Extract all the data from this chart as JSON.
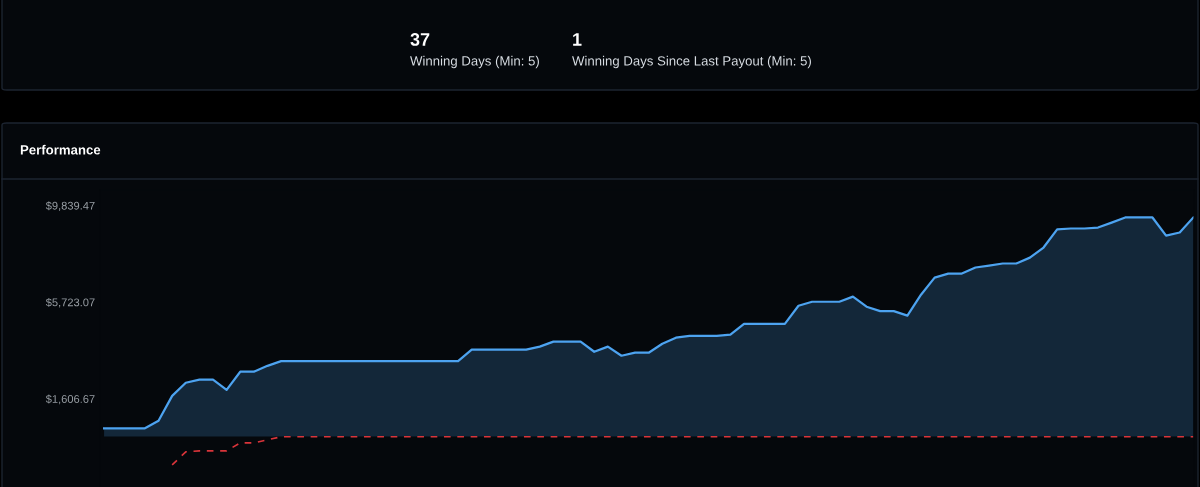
{
  "chart_data": [
    {
      "type": "other",
      "annotations": [
        "37",
        "Winning Days (Min: 5)",
        "1",
        "Winning Days Since Last Payout (Min: 5)"
      ]
    },
    {
      "type": "area",
      "title": "Performance",
      "categories": [
        null,
        null,
        null,
        null,
        null,
        null,
        null,
        null,
        null,
        null,
        null,
        null,
        null,
        null,
        null,
        null,
        null,
        null,
        null,
        null,
        null,
        null,
        null,
        null,
        null,
        null,
        null,
        null,
        null,
        null,
        null,
        null,
        null,
        null,
        null,
        null,
        null,
        null,
        null,
        null,
        null,
        null,
        null,
        null,
        null,
        null,
        null,
        null,
        null,
        null,
        null,
        null,
        null,
        null,
        null,
        null,
        null,
        null,
        null,
        null,
        null,
        null,
        null,
        null,
        null,
        null,
        null,
        null,
        null,
        null,
        null,
        null,
        null,
        null,
        null,
        null,
        null,
        null,
        null,
        null,
        null
      ],
      "ylim": [
        -2150,
        10500
      ],
      "yticks": [
        {
          "value": 1606.67,
          "label": "$1,606.67"
        },
        {
          "value": 5723.07,
          "label": "$5,723.07"
        },
        {
          "value": 9839.47,
          "label": "$9,839.47"
        }
      ],
      "tick_labels": "y",
      "grid": false,
      "legend": false,
      "series": [
        {
          "type": "area",
          "color": "#4da3f0",
          "values": [
            350,
            350,
            350,
            350,
            670,
            1730,
            2290,
            2420,
            2420,
            1990,
            2760,
            2760,
            3010,
            3210,
            3210,
            3210,
            3210,
            3210,
            3210,
            3210,
            3210,
            3210,
            3210,
            3210,
            3210,
            3210,
            3210,
            3700,
            3700,
            3700,
            3700,
            3700,
            3830,
            4040,
            4040,
            4040,
            3610,
            3830,
            3440,
            3570,
            3570,
            3950,
            4210,
            4290,
            4290,
            4290,
            4340,
            4800,
            4800,
            4800,
            4800,
            5570,
            5740,
            5740,
            5740,
            5960,
            5530,
            5340,
            5340,
            5150,
            6040,
            6770,
            6940,
            6940,
            7200,
            7280,
            7370,
            7370,
            7620,
            8050,
            8820,
            8860,
            8860,
            8900,
            9110,
            9330,
            9330,
            9330,
            8560,
            8690,
            9330
          ]
        },
        {
          "type": "line",
          "color": "#d9343a",
          "line_style": "dashed",
          "values": [
            null,
            null,
            null,
            null,
            null,
            -1210,
            -650,
            -610,
            -610,
            -610,
            -270,
            -270,
            -140,
            -10,
            -10,
            -10,
            -10,
            -10,
            -10,
            -10,
            -10,
            -10,
            -10,
            -10,
            -10,
            -10,
            -10,
            -10,
            -10,
            -10,
            -10,
            -10,
            -10,
            -10,
            -10,
            -10,
            -10,
            -10,
            -10,
            -10,
            -10,
            -10,
            -10,
            -10,
            -10,
            -10,
            -10,
            -10,
            -10,
            -10,
            -10,
            -10,
            -10,
            -10,
            -10,
            -10,
            -10,
            -10,
            -10,
            -10,
            -10,
            -10,
            -10,
            -10,
            -10,
            -10,
            -10,
            -10,
            -10,
            -10,
            -10,
            -10,
            -10,
            -10,
            -10,
            -10,
            -10,
            -10,
            -10,
            -10,
            -10
          ]
        }
      ]
    }
  ]
}
